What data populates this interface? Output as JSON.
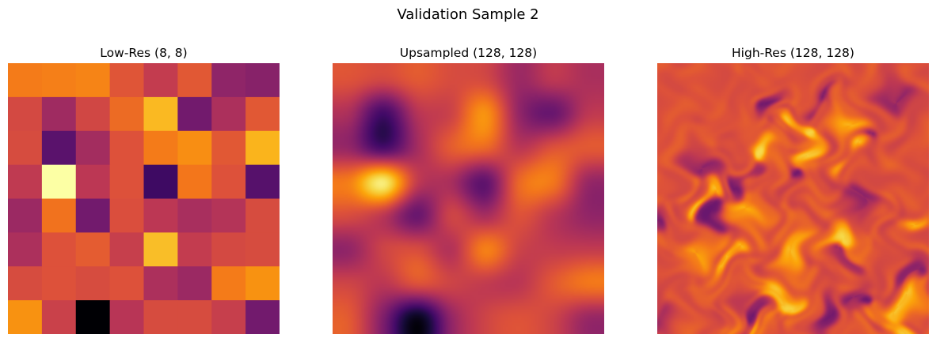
{
  "suptitle": "Validation Sample 2",
  "chart_data": [
    {
      "type": "heatmap",
      "title": "Low-Res (8, 8)",
      "colormap": "inferno",
      "grid": false,
      "axes": "off",
      "values": [
        [
          0.71,
          0.72,
          0.73,
          0.61,
          0.52,
          0.62,
          0.39,
          0.37
        ],
        [
          0.57,
          0.43,
          0.56,
          0.67,
          0.84,
          0.32,
          0.46,
          0.62
        ],
        [
          0.58,
          0.26,
          0.44,
          0.6,
          0.71,
          0.75,
          0.62,
          0.83
        ],
        [
          0.51,
          1.0,
          0.5,
          0.6,
          0.19,
          0.7,
          0.6,
          0.25
        ],
        [
          0.42,
          0.69,
          0.32,
          0.59,
          0.5,
          0.45,
          0.48,
          0.58
        ],
        [
          0.46,
          0.6,
          0.63,
          0.53,
          0.85,
          0.52,
          0.57,
          0.58
        ],
        [
          0.58,
          0.6,
          0.58,
          0.6,
          0.46,
          0.42,
          0.71,
          0.76
        ],
        [
          0.76,
          0.54,
          0.0,
          0.49,
          0.58,
          0.58,
          0.53,
          0.32
        ]
      ]
    },
    {
      "type": "heatmap",
      "title": "Upsampled (128, 128)",
      "colormap": "inferno",
      "grid": false,
      "axes": "off",
      "source_shape": [
        8,
        8
      ],
      "values": [
        [
          0.6,
          0.56,
          0.62,
          0.58,
          0.57,
          0.42,
          0.5,
          0.46
        ],
        [
          0.45,
          0.2,
          0.48,
          0.55,
          0.76,
          0.4,
          0.3,
          0.5
        ],
        [
          0.4,
          0.22,
          0.44,
          0.63,
          0.66,
          0.5,
          0.6,
          0.62
        ],
        [
          0.72,
          0.95,
          0.52,
          0.45,
          0.28,
          0.66,
          0.7,
          0.42
        ],
        [
          0.58,
          0.5,
          0.3,
          0.55,
          0.45,
          0.6,
          0.5,
          0.4
        ],
        [
          0.4,
          0.55,
          0.58,
          0.48,
          0.72,
          0.55,
          0.52,
          0.52
        ],
        [
          0.55,
          0.5,
          0.6,
          0.55,
          0.52,
          0.5,
          0.62,
          0.7
        ],
        [
          0.62,
          0.35,
          0.05,
          0.4,
          0.55,
          0.6,
          0.55,
          0.42
        ]
      ]
    },
    {
      "type": "heatmap",
      "title": "High-Res (128, 128)",
      "colormap": "inferno",
      "grid": false,
      "axes": "off"
    }
  ]
}
